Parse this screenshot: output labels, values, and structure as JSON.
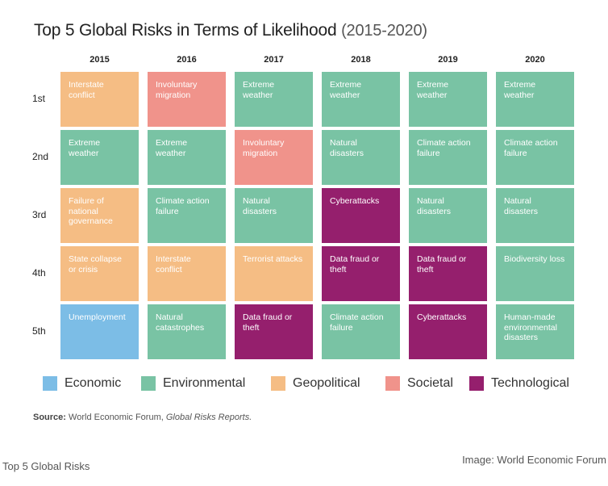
{
  "chart": {
    "title": "Top 5 Global Risks in Terms of Likelihood",
    "subtitle": "(2015-2020)",
    "source_label": "Source:",
    "source_text": "World Economic Forum,",
    "source_italic": "Global Risks Reports."
  },
  "caption": "Top 5 Global Risks",
  "credit": "Image: World Economic Forum",
  "colors": {
    "Economic": "#7cbde6",
    "Environmental": "#79c3a4",
    "Geopolitical": "#f5bd84",
    "Societal": "#f0938b",
    "Technological": "#951f6d"
  },
  "chart_data": {
    "type": "table",
    "years": [
      "2015",
      "2016",
      "2017",
      "2018",
      "2019",
      "2020"
    ],
    "ranks": [
      "1st",
      "2nd",
      "3rd",
      "4th",
      "5th"
    ],
    "categories": [
      "Economic",
      "Environmental",
      "Geopolitical",
      "Societal",
      "Technological"
    ],
    "cells": [
      [
        {
          "risk": "Interstate conflict",
          "category": "Geopolitical"
        },
        {
          "risk": "Extreme weather",
          "category": "Environmental"
        },
        {
          "risk": "Failure of national governance",
          "category": "Geopolitical"
        },
        {
          "risk": "State collapse or crisis",
          "category": "Geopolitical"
        },
        {
          "risk": "Unemployment",
          "category": "Economic"
        }
      ],
      [
        {
          "risk": "Involuntary migration",
          "category": "Societal"
        },
        {
          "risk": "Extreme weather",
          "category": "Environmental"
        },
        {
          "risk": "Climate action failure",
          "category": "Environmental"
        },
        {
          "risk": "Interstate conflict",
          "category": "Geopolitical"
        },
        {
          "risk": "Natural catastrophes",
          "category": "Environmental"
        }
      ],
      [
        {
          "risk": "Extreme weather",
          "category": "Environmental"
        },
        {
          "risk": "Involuntary migration",
          "category": "Societal"
        },
        {
          "risk": "Natural disasters",
          "category": "Environmental"
        },
        {
          "risk": "Terrorist attacks",
          "category": "Geopolitical"
        },
        {
          "risk": "Data fraud or theft",
          "category": "Technological"
        }
      ],
      [
        {
          "risk": "Extreme weather",
          "category": "Environmental"
        },
        {
          "risk": "Natural disasters",
          "category": "Environmental"
        },
        {
          "risk": "Cyberattacks",
          "category": "Technological"
        },
        {
          "risk": "Data fraud or theft",
          "category": "Technological"
        },
        {
          "risk": "Climate action failure",
          "category": "Environmental"
        }
      ],
      [
        {
          "risk": "Extreme weather",
          "category": "Environmental"
        },
        {
          "risk": "Climate action failure",
          "category": "Environmental"
        },
        {
          "risk": "Natural disasters",
          "category": "Environmental"
        },
        {
          "risk": "Data fraud or theft",
          "category": "Technological"
        },
        {
          "risk": "Cyberattacks",
          "category": "Technological"
        }
      ],
      [
        {
          "risk": "Extreme weather",
          "category": "Environmental"
        },
        {
          "risk": "Climate action failure",
          "category": "Environmental"
        },
        {
          "risk": "Natural disasters",
          "category": "Environmental"
        },
        {
          "risk": "Biodiversity loss",
          "category": "Environmental"
        },
        {
          "risk": "Human-made environmental disasters",
          "category": "Environmental"
        }
      ]
    ]
  }
}
